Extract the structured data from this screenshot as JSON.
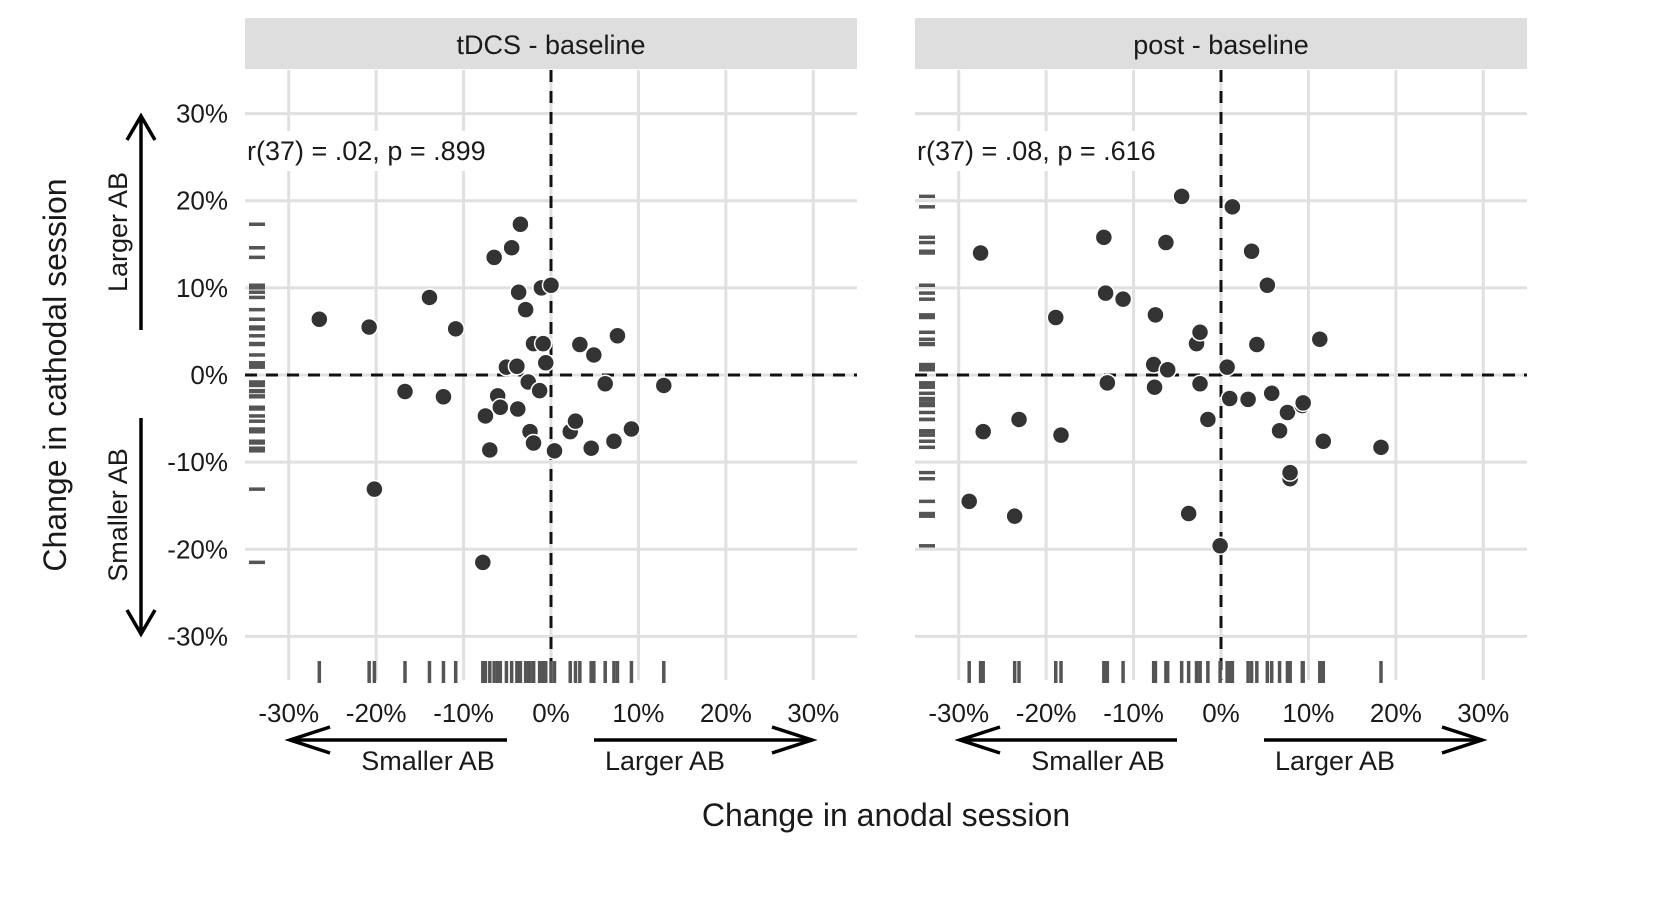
{
  "axes": {
    "x_title": "Change in anodal session",
    "y_title": "Change in cathodal session",
    "x_dir_negative": "Smaller AB",
    "x_dir_positive": "Larger AB",
    "y_dir_negative": "Smaller AB",
    "y_dir_positive": "Larger AB"
  },
  "chart_data": [
    {
      "type": "scatter",
      "facet": "tDCS - baseline",
      "annotation": "r(37) = .02, p = .899",
      "xlim": [
        -35,
        35
      ],
      "ylim": [
        -35,
        35
      ],
      "x_ticks": [
        -30,
        -20,
        -10,
        0,
        10,
        20,
        30
      ],
      "y_ticks": [
        -30,
        -20,
        -10,
        0,
        10,
        20,
        30
      ],
      "x_tick_labels": [
        "-30%",
        "-20%",
        "-10%",
        "0%",
        "10%",
        "20%",
        "30%"
      ],
      "y_tick_labels": [
        "-30%",
        "-20%",
        "-10%",
        "0%",
        "10%",
        "20%",
        "30%"
      ],
      "reference_lines": {
        "x": 0,
        "y": 0
      },
      "rug": true,
      "grid": true,
      "points": [
        [
          -26.5,
          6.4
        ],
        [
          -20.8,
          5.5
        ],
        [
          -20.2,
          -13.1
        ],
        [
          -16.7,
          -1.9
        ],
        [
          -13.9,
          8.9
        ],
        [
          -12.3,
          -2.5
        ],
        [
          -10.9,
          5.3
        ],
        [
          -7.8,
          -21.5
        ],
        [
          -7.5,
          -4.7
        ],
        [
          -7.0,
          -8.6
        ],
        [
          -6.5,
          13.5
        ],
        [
          -6.1,
          -2.4
        ],
        [
          -5.8,
          -3.7
        ],
        [
          -5.1,
          0.9
        ],
        [
          -4.5,
          14.6
        ],
        [
          -3.9,
          1.0
        ],
        [
          -3.8,
          -3.9
        ],
        [
          -3.7,
          9.5
        ],
        [
          -3.5,
          17.3
        ],
        [
          -2.9,
          7.5
        ],
        [
          -2.6,
          -0.8
        ],
        [
          -2.4,
          -6.5
        ],
        [
          -2.0,
          3.6
        ],
        [
          -2.0,
          -7.8
        ],
        [
          -1.3,
          -1.8
        ],
        [
          -1.1,
          10.0
        ],
        [
          -0.9,
          3.6
        ],
        [
          -0.6,
          1.4
        ],
        [
          0.0,
          10.3
        ],
        [
          0.4,
          -8.7
        ],
        [
          2.2,
          -6.5
        ],
        [
          2.8,
          -5.3
        ],
        [
          3.3,
          3.5
        ],
        [
          4.6,
          -8.4
        ],
        [
          4.9,
          2.3
        ],
        [
          6.2,
          -1.0
        ],
        [
          7.2,
          -7.6
        ],
        [
          7.6,
          4.5
        ],
        [
          9.2,
          -6.2
        ],
        [
          12.9,
          -1.2
        ]
      ]
    },
    {
      "type": "scatter",
      "facet": "post - baseline",
      "annotation": "r(37) = .08, p = .616",
      "xlim": [
        -35,
        35
      ],
      "ylim": [
        -35,
        35
      ],
      "x_ticks": [
        -30,
        -20,
        -10,
        0,
        10,
        20,
        30
      ],
      "y_ticks": [
        -30,
        -20,
        -10,
        0,
        10,
        20,
        30
      ],
      "x_tick_labels": [
        "-30%",
        "-20%",
        "-10%",
        "0%",
        "10%",
        "20%",
        "30%"
      ],
      "y_tick_labels": [],
      "reference_lines": {
        "x": 0,
        "y": 0
      },
      "rug": true,
      "grid": true,
      "points": [
        [
          -28.8,
          -14.5
        ],
        [
          -27.5,
          14.0
        ],
        [
          -27.2,
          -6.5
        ],
        [
          -23.6,
          -16.2
        ],
        [
          -23.1,
          -5.1
        ],
        [
          -18.9,
          6.6
        ],
        [
          -18.3,
          -6.9
        ],
        [
          -13.4,
          15.8
        ],
        [
          -13.2,
          9.4
        ],
        [
          -13.0,
          -0.9
        ],
        [
          -11.2,
          8.7
        ],
        [
          -7.5,
          6.9
        ],
        [
          -7.7,
          1.2
        ],
        [
          -7.6,
          -1.4
        ],
        [
          -6.3,
          15.2
        ],
        [
          -6.1,
          0.6
        ],
        [
          -4.5,
          20.5
        ],
        [
          -3.7,
          -15.9
        ],
        [
          -2.8,
          3.6
        ],
        [
          -2.4,
          4.9
        ],
        [
          -2.4,
          -1.0
        ],
        [
          -1.5,
          -5.1
        ],
        [
          -0.1,
          -19.6
        ],
        [
          0.7,
          0.9
        ],
        [
          1.0,
          -2.7
        ],
        [
          1.3,
          19.3
        ],
        [
          3.1,
          -2.8
        ],
        [
          3.5,
          14.2
        ],
        [
          4.1,
          3.5
        ],
        [
          5.3,
          10.3
        ],
        [
          5.8,
          -2.1
        ],
        [
          6.7,
          -6.4
        ],
        [
          7.6,
          -4.3
        ],
        [
          7.9,
          -11.9
        ],
        [
          7.9,
          -11.2
        ],
        [
          9.3,
          -3.5
        ],
        [
          9.4,
          -3.2
        ],
        [
          11.3,
          4.1
        ],
        [
          11.7,
          -7.6
        ],
        [
          18.3,
          -8.3
        ]
      ]
    }
  ]
}
